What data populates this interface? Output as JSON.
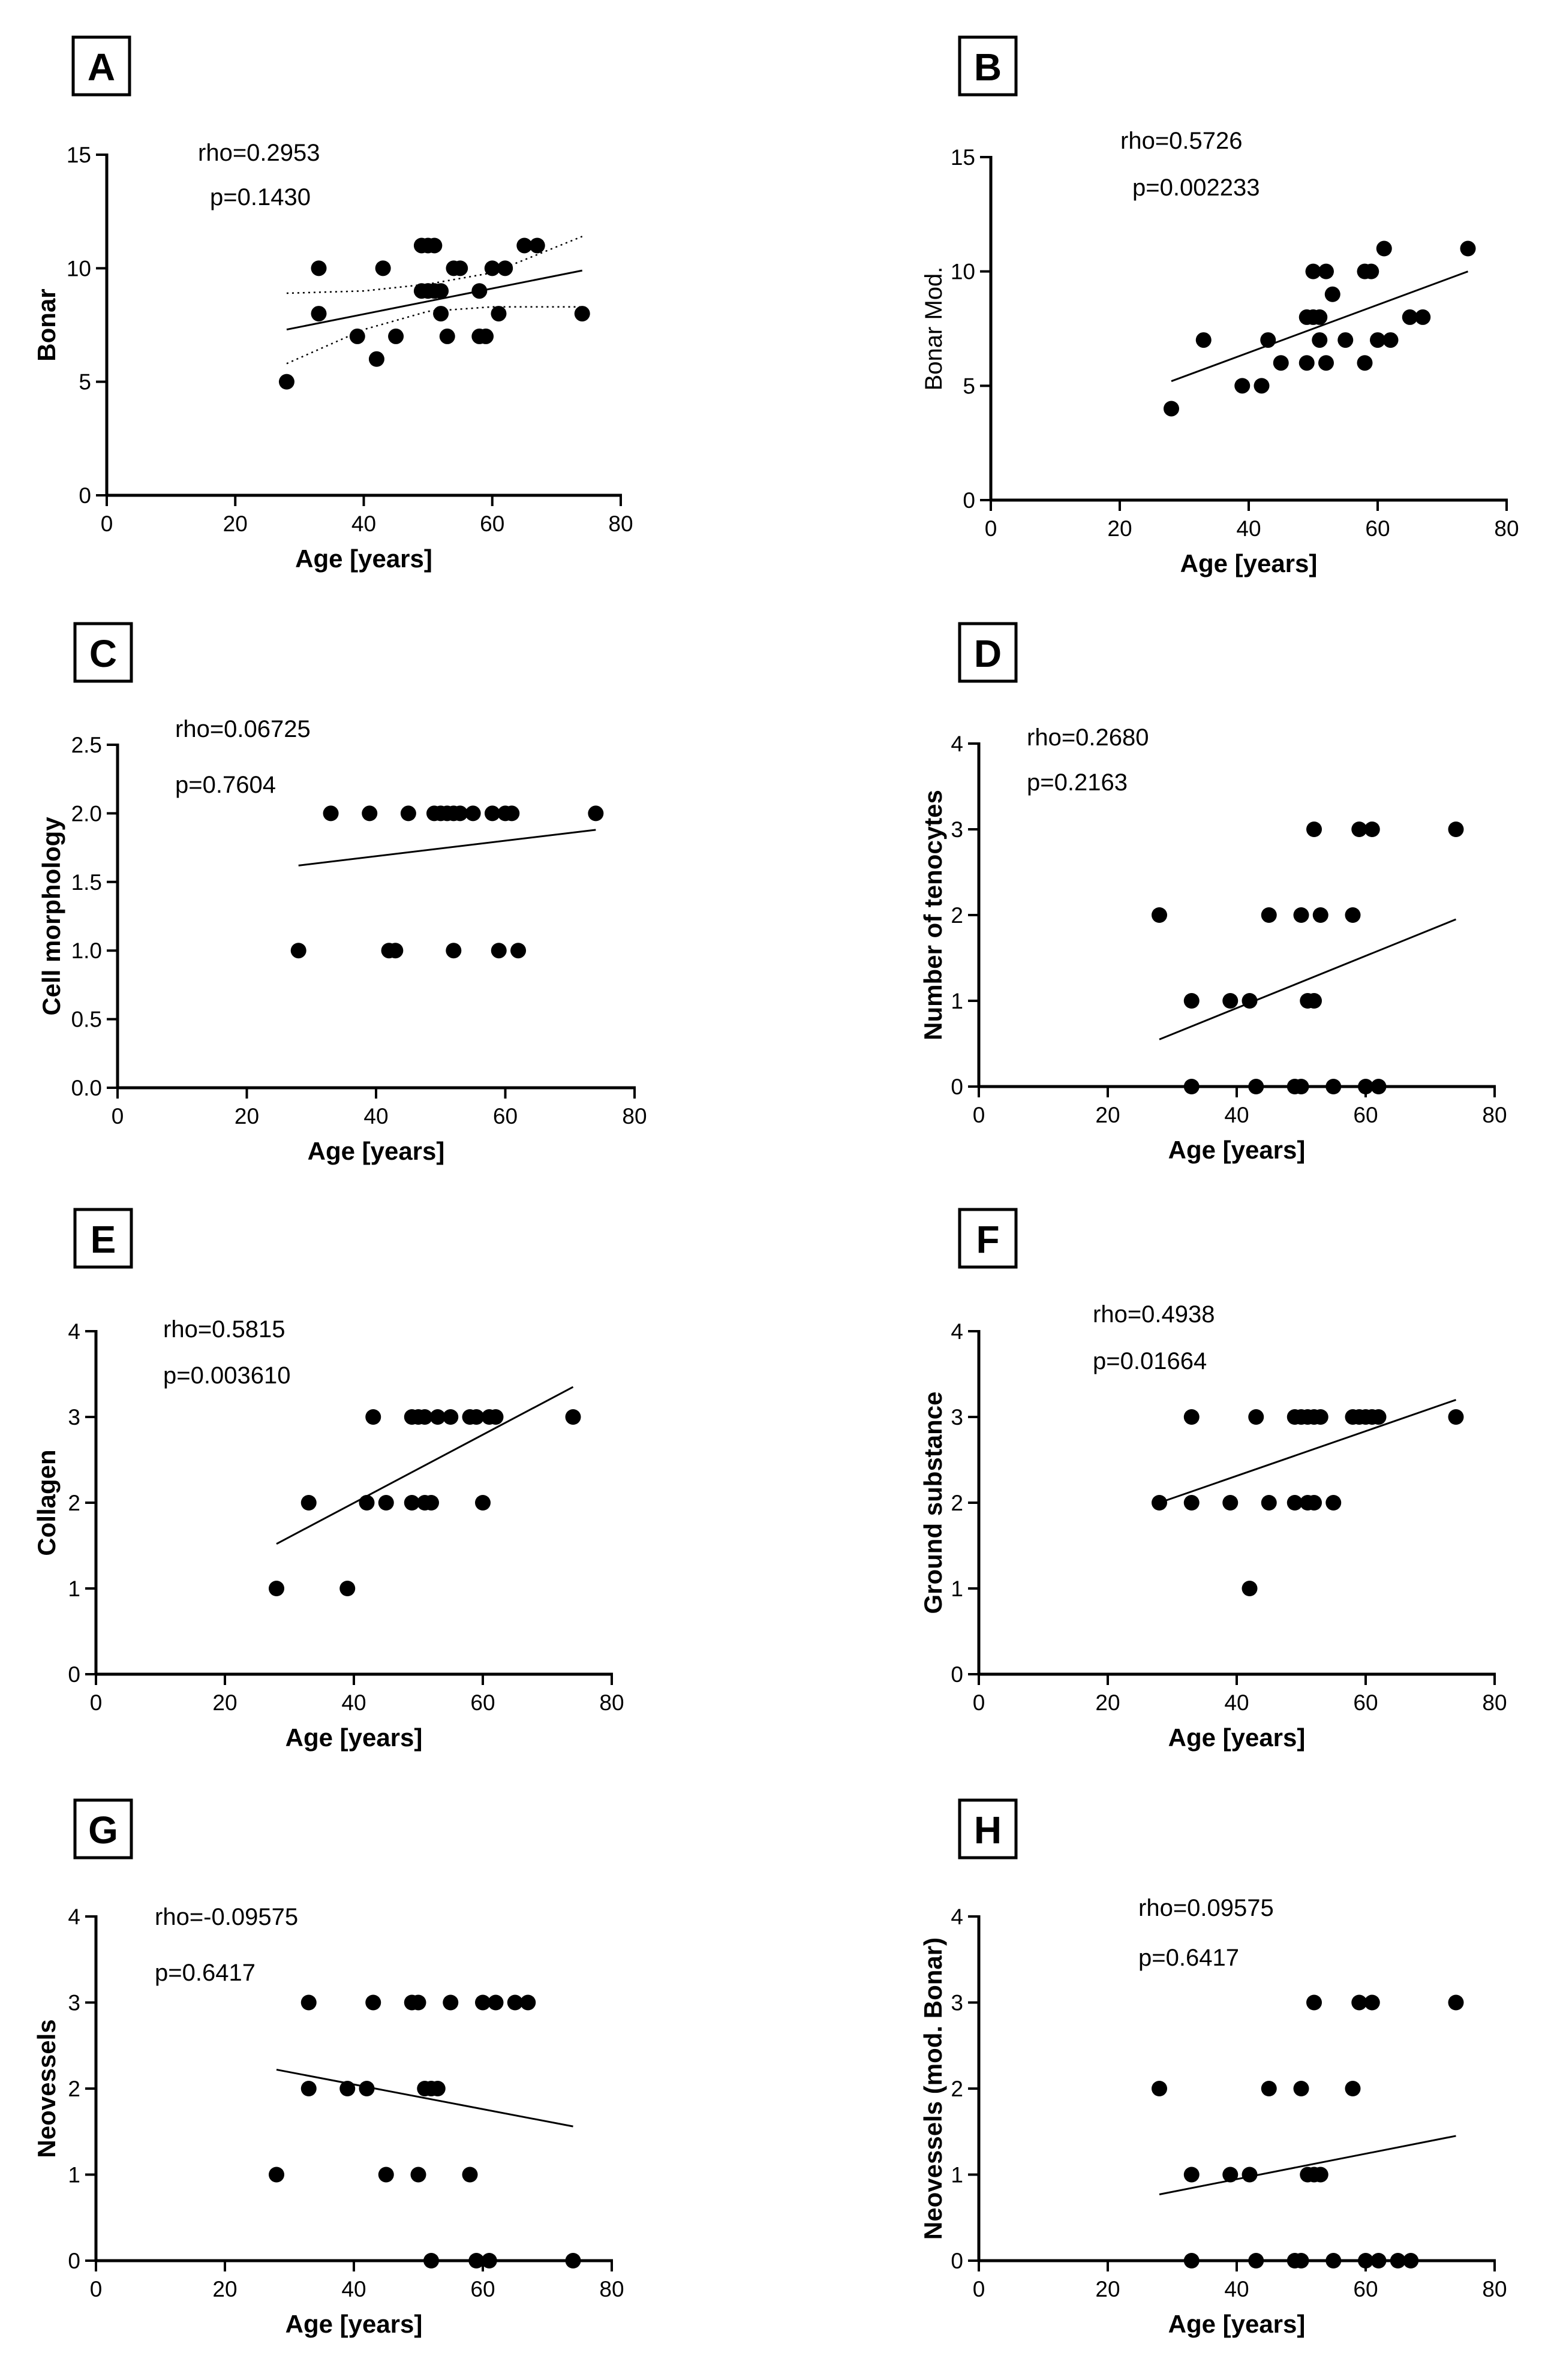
{
  "figure": {
    "chart_data": [
      {
        "panel": "A",
        "type": "scatter",
        "xlabel": "Age [years]",
        "ylabel": "Bonar",
        "ylabel_bold": true,
        "xlim": [
          0,
          80
        ],
        "ylim": [
          0,
          15
        ],
        "xticks": [
          0,
          20,
          40,
          60,
          80
        ],
        "yticks": [
          0,
          5,
          10,
          15
        ],
        "annotations": [
          "rho=0.2953",
          "p=0.1430"
        ],
        "regression": {
          "x": [
            28,
            74
          ],
          "y": [
            7.3,
            9.9
          ]
        },
        "confidence_band": {
          "upper": {
            "x": [
              28,
              40,
              50,
              60,
              74
            ],
            "y": [
              8.9,
              9.0,
              9.3,
              9.8,
              11.4
            ]
          },
          "lower": {
            "x": [
              28,
              40,
              50,
              60,
              74
            ],
            "y": [
              5.8,
              7.3,
              8.1,
              8.3,
              8.3
            ]
          }
        },
        "x": [
          28,
          33,
          33,
          39,
          42,
          43,
          45,
          49,
          49,
          50,
          50,
          50,
          51,
          51,
          52,
          52,
          53,
          54,
          55,
          58,
          58,
          59,
          60,
          61,
          62,
          65,
          67,
          74
        ],
        "y": [
          5,
          8,
          10,
          7,
          6,
          10,
          7,
          9,
          11,
          9,
          9,
          11,
          9,
          11,
          8,
          9,
          7,
          10,
          10,
          9,
          7,
          7,
          10,
          8,
          10,
          11,
          11,
          8
        ]
      },
      {
        "panel": "B",
        "type": "scatter",
        "xlabel": "Age [years]",
        "ylabel": "Bonar Mod.",
        "ylabel_bold": false,
        "xlim": [
          0,
          80
        ],
        "ylim": [
          0,
          15
        ],
        "xticks": [
          0,
          20,
          40,
          60,
          80
        ],
        "yticks": [
          0,
          5,
          10,
          15
        ],
        "annotations": [
          "rho=0.5726",
          "p=0.002233"
        ],
        "regression": {
          "x": [
            28,
            74
          ],
          "y": [
            5.2,
            10.0
          ]
        },
        "x": [
          28,
          33,
          39,
          42,
          43,
          45,
          49,
          49,
          50,
          50,
          51,
          51,
          52,
          52,
          53,
          55,
          58,
          58,
          59,
          60,
          61,
          62,
          65,
          67,
          74
        ],
        "y": [
          4,
          7,
          5,
          5,
          7,
          6,
          6,
          8,
          8,
          10,
          8,
          7,
          6,
          10,
          9,
          7,
          6,
          10,
          10,
          7,
          11,
          7,
          8,
          8,
          11
        ]
      },
      {
        "panel": "C",
        "type": "scatter",
        "xlabel": "Age [years]",
        "ylabel": "Cell morphology",
        "ylabel_bold": true,
        "xlim": [
          0,
          80
        ],
        "ylim": [
          0,
          2.5
        ],
        "xticks": [
          0,
          20,
          40,
          60,
          80
        ],
        "yticks": [
          0,
          0.5,
          1.0,
          1.5,
          2.0,
          2.5
        ],
        "ytick_labels": [
          "0.0",
          "0.5",
          "1.0",
          "1.5",
          "2.0",
          "2.5"
        ],
        "annotations": [
          "rho=0.06725",
          "p=0.7604"
        ],
        "regression": {
          "x": [
            28,
            74
          ],
          "y": [
            1.62,
            1.88
          ]
        },
        "x": [
          28,
          33,
          39,
          42,
          43,
          45,
          49,
          50,
          51,
          52,
          52,
          53,
          55,
          58,
          59,
          60,
          61,
          62,
          74
        ],
        "y": [
          1,
          2,
          2,
          1,
          1,
          2,
          2,
          2,
          2,
          1,
          2,
          2,
          2,
          2,
          1,
          2,
          2,
          1,
          2
        ]
      },
      {
        "panel": "D",
        "type": "scatter",
        "xlabel": "Age [years]",
        "ylabel": "Number of tenocytes",
        "ylabel_bold": true,
        "xlim": [
          0,
          80
        ],
        "ylim": [
          0,
          4
        ],
        "xticks": [
          0,
          20,
          40,
          60,
          80
        ],
        "yticks": [
          0,
          1,
          2,
          3,
          4
        ],
        "annotations": [
          "rho=0.2680",
          "p=0.2163"
        ],
        "regression": {
          "x": [
            28,
            74
          ],
          "y": [
            0.55,
            1.95
          ]
        },
        "x": [
          28,
          33,
          33,
          39,
          42,
          43,
          45,
          49,
          50,
          50,
          51,
          52,
          52,
          53,
          55,
          58,
          59,
          60,
          61,
          62,
          74
        ],
        "y": [
          2,
          1,
          0,
          1,
          1,
          0,
          2,
          0,
          2,
          0,
          1,
          1,
          3,
          2,
          0,
          2,
          3,
          0,
          3,
          0,
          3
        ]
      },
      {
        "panel": "E",
        "type": "scatter",
        "xlabel": "Age [years]",
        "ylabel": "Collagen",
        "ylabel_bold": true,
        "xlim": [
          0,
          80
        ],
        "ylim": [
          0,
          4
        ],
        "xticks": [
          0,
          20,
          40,
          60,
          80
        ],
        "yticks": [
          0,
          1,
          2,
          3,
          4
        ],
        "annotations": [
          "rho=0.5815",
          "p=0.003610"
        ],
        "regression": {
          "x": [
            28,
            74
          ],
          "y": [
            1.52,
            3.35
          ]
        },
        "x": [
          28,
          33,
          39,
          42,
          43,
          45,
          49,
          49,
          50,
          51,
          51,
          52,
          53,
          55,
          58,
          59,
          60,
          61,
          62,
          74
        ],
        "y": [
          1,
          2,
          1,
          2,
          3,
          2,
          3,
          2,
          3,
          3,
          2,
          2,
          3,
          3,
          3,
          3,
          2,
          3,
          3,
          3
        ]
      },
      {
        "panel": "F",
        "type": "scatter",
        "xlabel": "Age [years]",
        "ylabel": "Ground substance",
        "ylabel_bold": true,
        "xlim": [
          0,
          80
        ],
        "ylim": [
          0,
          4
        ],
        "xticks": [
          0,
          20,
          40,
          60,
          80
        ],
        "yticks": [
          0,
          1,
          2,
          3,
          4
        ],
        "annotations": [
          "rho=0.4938",
          "p=0.01664"
        ],
        "regression": {
          "x": [
            28,
            74
          ],
          "y": [
            2.0,
            3.2
          ]
        },
        "x": [
          28,
          33,
          33,
          39,
          42,
          43,
          45,
          49,
          49,
          50,
          51,
          51,
          52,
          52,
          53,
          55,
          58,
          59,
          60,
          61,
          62,
          74
        ],
        "y": [
          2,
          3,
          2,
          2,
          1,
          3,
          2,
          3,
          2,
          3,
          3,
          2,
          3,
          2,
          3,
          2,
          3,
          3,
          3,
          3,
          3,
          3
        ]
      },
      {
        "panel": "G",
        "type": "scatter",
        "xlabel": "Age [years]",
        "ylabel": "Neovessels",
        "ylabel_bold": true,
        "xlim": [
          0,
          80
        ],
        "ylim": [
          0,
          4
        ],
        "xticks": [
          0,
          20,
          40,
          60,
          80
        ],
        "yticks": [
          0,
          1,
          2,
          3,
          4
        ],
        "annotations": [
          "rho=-0.09575",
          "p=0.6417"
        ],
        "regression": {
          "x": [
            28,
            74
          ],
          "y": [
            2.22,
            1.56
          ]
        },
        "x": [
          28,
          33,
          33,
          39,
          42,
          43,
          45,
          49,
          50,
          50,
          51,
          52,
          52,
          53,
          55,
          58,
          59,
          60,
          61,
          62,
          65,
          67,
          74
        ],
        "y": [
          1,
          3,
          2,
          2,
          2,
          3,
          1,
          3,
          3,
          1,
          2,
          2,
          0,
          2,
          3,
          1,
          0,
          3,
          0,
          3,
          3,
          3,
          0
        ]
      },
      {
        "panel": "H",
        "type": "scatter",
        "xlabel": "Age [years]",
        "ylabel": "Neovessels (mod. Bonar)",
        "ylabel_bold": true,
        "xlim": [
          0,
          80
        ],
        "ylim": [
          0,
          4
        ],
        "xticks": [
          0,
          20,
          40,
          60,
          80
        ],
        "yticks": [
          0,
          1,
          2,
          3,
          4
        ],
        "annotations": [
          "rho=0.09575",
          "p=0.6417"
        ],
        "regression": {
          "x": [
            28,
            74
          ],
          "y": [
            0.77,
            1.45
          ]
        },
        "x": [
          28,
          33,
          33,
          39,
          42,
          43,
          45,
          49,
          50,
          50,
          51,
          52,
          52,
          53,
          55,
          58,
          59,
          60,
          61,
          62,
          65,
          67,
          74
        ],
        "y": [
          2,
          1,
          0,
          1,
          1,
          0,
          2,
          0,
          2,
          0,
          1,
          1,
          3,
          1,
          0,
          2,
          3,
          0,
          3,
          0,
          0,
          0,
          3
        ]
      }
    ]
  }
}
